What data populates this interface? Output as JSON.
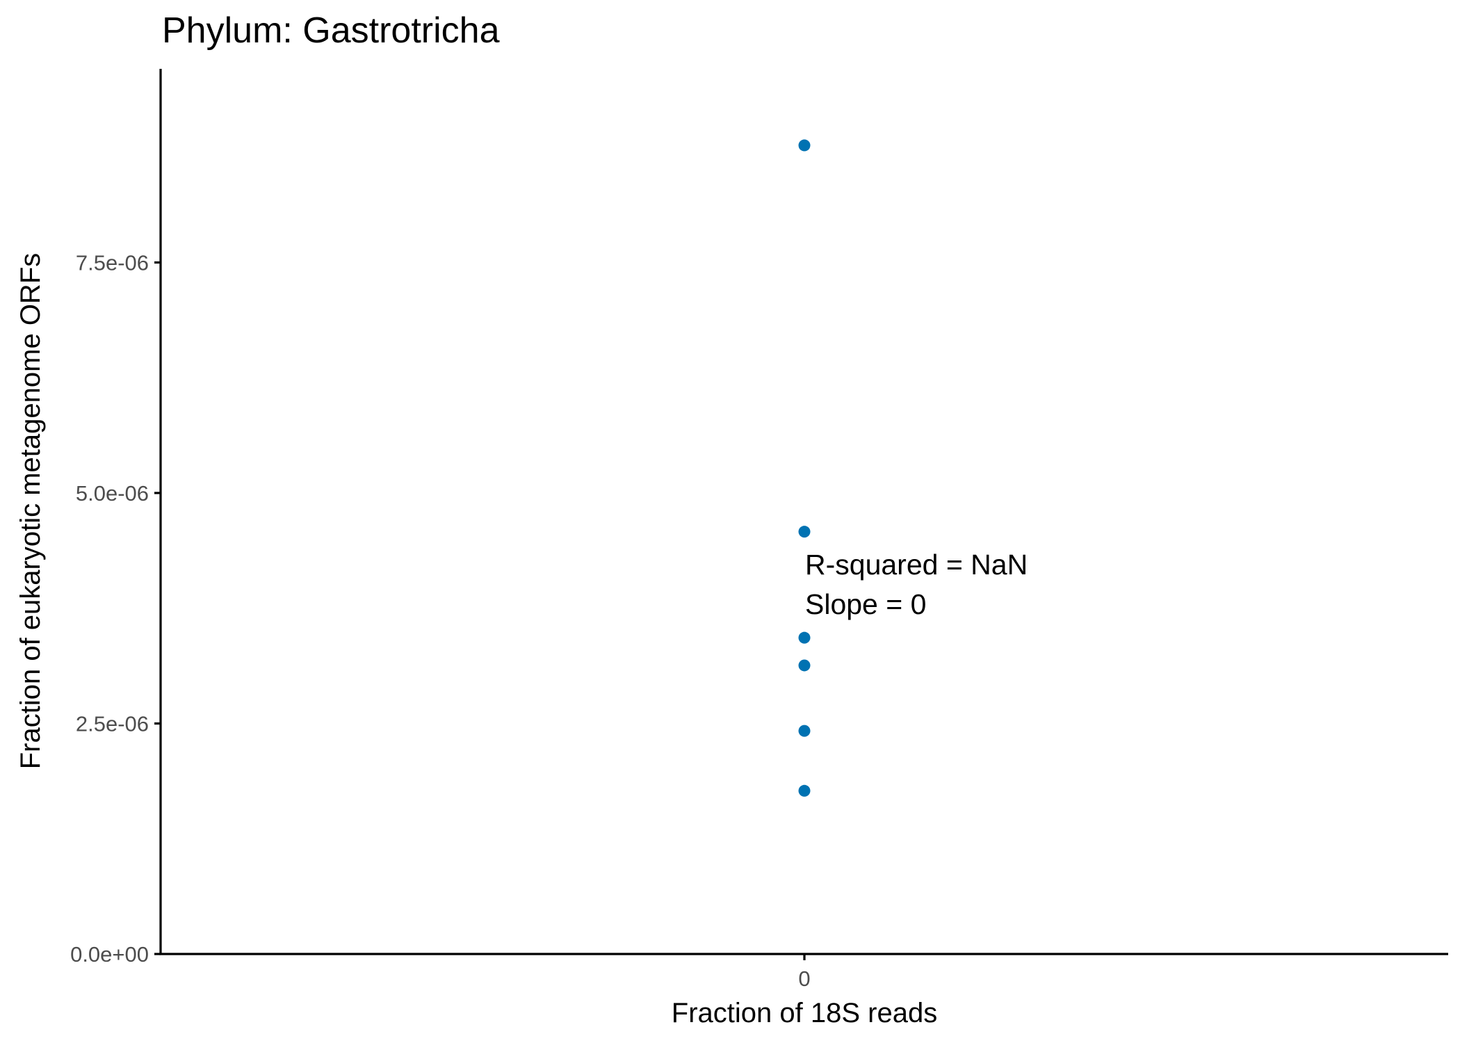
{
  "chart_data": {
    "type": "scatter",
    "title": "Phylum:  Gastrotricha",
    "xlabel": "Fraction of 18S reads",
    "ylabel": "Fraction of eukaryotic metagenome ORFs",
    "x_ticks": [
      {
        "value": 0,
        "label": "0"
      }
    ],
    "y_ticks": [
      {
        "value": 0,
        "label": "0.0e+00"
      },
      {
        "value": 2.5e-06,
        "label": "2.5e-06"
      },
      {
        "value": 5e-06,
        "label": "5.0e-06"
      },
      {
        "value": 7.5e-06,
        "label": "7.5e-06"
      }
    ],
    "ylim": [
      0,
      9.6e-06
    ],
    "xlim": [
      -0.05,
      0.05
    ],
    "grid": false,
    "point_color": "#0072B2",
    "points": [
      {
        "x": 0,
        "y": 8.77e-06
      },
      {
        "x": 0,
        "y": 4.58e-06
      },
      {
        "x": 0,
        "y": 3.43e-06
      },
      {
        "x": 0,
        "y": 3.13e-06
      },
      {
        "x": 0,
        "y": 2.42e-06
      },
      {
        "x": 0,
        "y": 1.77e-06
      }
    ],
    "annotations": [
      "R-squared =  NaN",
      "Slope =  0"
    ]
  }
}
